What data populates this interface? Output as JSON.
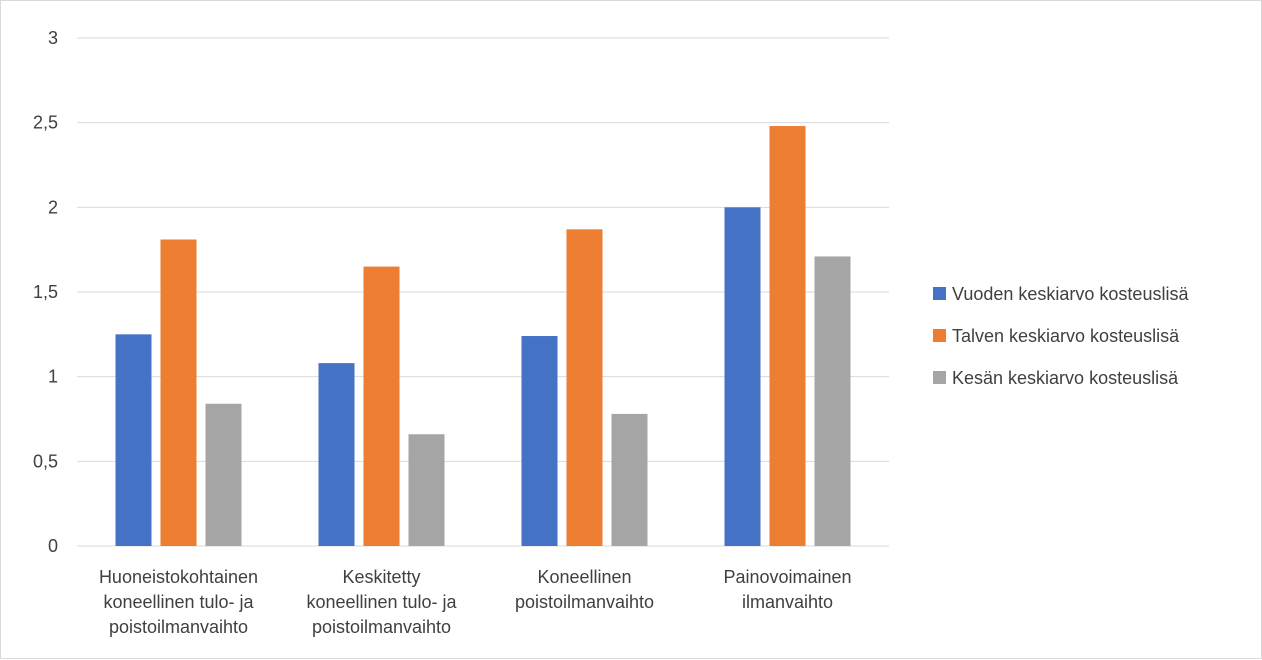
{
  "chart_data": {
    "type": "bar",
    "title": "",
    "xlabel": "",
    "ylabel": "",
    "ylim": [
      0,
      3
    ],
    "yticks": [
      0,
      0.5,
      1,
      1.5,
      2,
      2.5,
      3
    ],
    "ytick_labels": [
      "0",
      "0,5",
      "1",
      "1,5",
      "2",
      "2,5",
      "3"
    ],
    "grid": true,
    "legend_position": "right",
    "categories": [
      [
        "Huoneistokohtainen",
        "koneellinen tulo- ja",
        "poistoilmanvaihto"
      ],
      [
        "Keskitetty",
        "koneellinen tulo- ja",
        "poistoilmanvaihto"
      ],
      [
        "Koneellinen",
        "poistoilmanvaihto"
      ],
      [
        "Painovoimainen",
        "ilmanvaihto"
      ]
    ],
    "series": [
      {
        "name": "Vuoden keskiarvo kosteuslisä",
        "color": "#4472C4",
        "values": [
          1.25,
          1.08,
          1.24,
          2.0
        ]
      },
      {
        "name": "Talven keskiarvo kosteuslisä",
        "color": "#ED7D31",
        "values": [
          1.81,
          1.65,
          1.87,
          2.48
        ]
      },
      {
        "name": "Kesän keskiarvo kosteuslisä",
        "color": "#A5A5A5",
        "values": [
          0.84,
          0.66,
          0.78,
          1.71
        ]
      }
    ],
    "gridline_color": "#d9d9d9",
    "text_color": "#404040"
  }
}
